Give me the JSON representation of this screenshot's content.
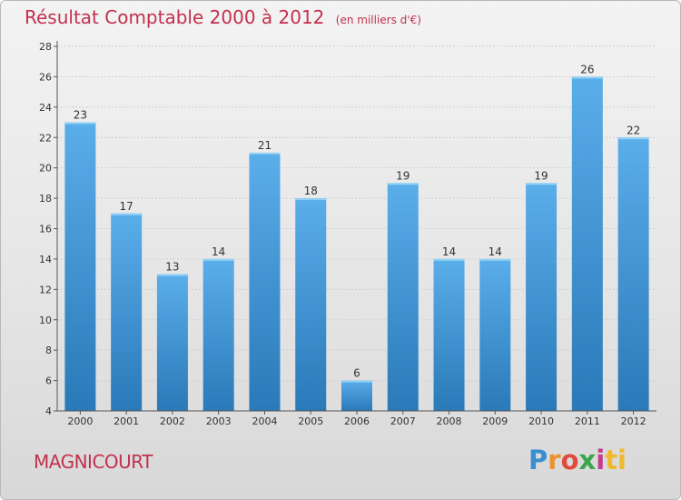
{
  "title": "Résultat Comptable 2000 à 2012",
  "subtitle": "(en milliers d'€)",
  "commune": "MAGNICOURT",
  "brand": [
    "P",
    "r",
    "o",
    "x",
    "i",
    "ti"
  ],
  "colors": {
    "bar_light": "#5aaeea",
    "bar_dark": "#2a79b8",
    "title": "#c3304d"
  },
  "chart_data": {
    "type": "bar",
    "title": "Résultat Comptable 2000 à 2012",
    "subtitle": "(en milliers d'€)",
    "xlabel": "",
    "ylabel": "",
    "categories": [
      "2000",
      "2001",
      "2002",
      "2003",
      "2004",
      "2005",
      "2006",
      "2007",
      "2008",
      "2009",
      "2010",
      "2011",
      "2012"
    ],
    "values": [
      23,
      17,
      13,
      14,
      21,
      18,
      6,
      19,
      14,
      14,
      19,
      26,
      22
    ],
    "ylim": [
      4,
      28
    ],
    "yticks": [
      4,
      6,
      8,
      10,
      12,
      14,
      16,
      18,
      20,
      22,
      24,
      26,
      28
    ],
    "grid": true
  }
}
